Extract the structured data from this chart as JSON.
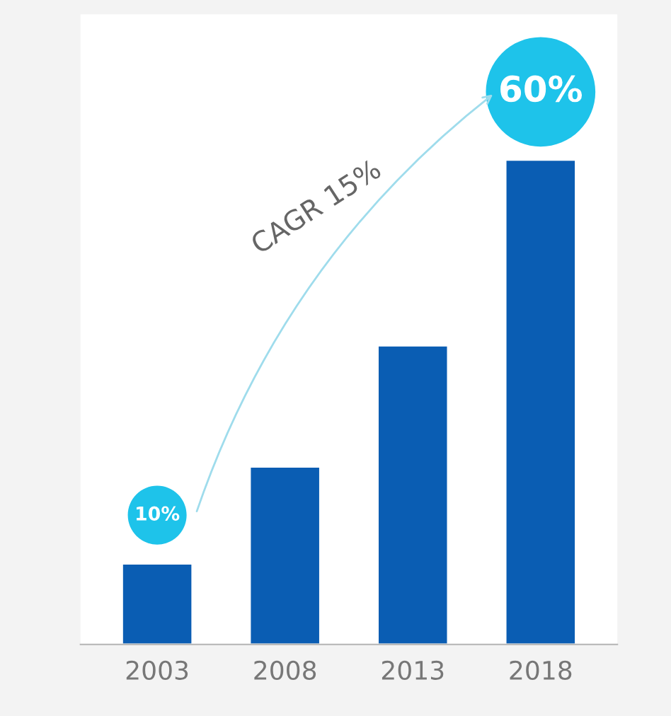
{
  "chart_data": {
    "type": "bar",
    "categories": [
      "2003",
      "2008",
      "2013",
      "2018"
    ],
    "values": [
      10,
      22,
      37,
      60
    ],
    "value_labels": [
      "10%",
      null,
      null,
      "60%"
    ],
    "color": "#0a5db3",
    "annotations": [
      "CAGR 15%"
    ],
    "grid": false,
    "legend": false
  }
}
